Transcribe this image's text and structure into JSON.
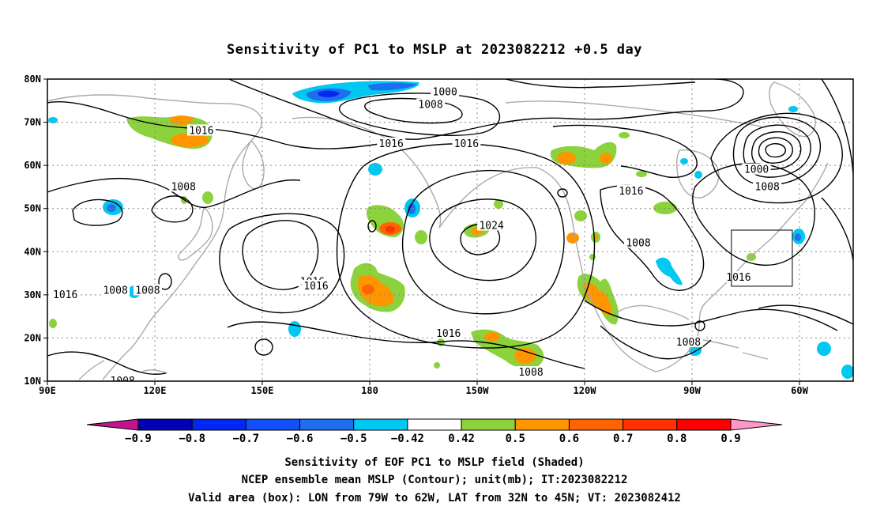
{
  "title": "Sensitivity of PC1 to MSLP at 2023082212 +0.5 day",
  "lat_labels": [
    {
      "name": "lat-80n",
      "label": "80N",
      "lat": 80
    },
    {
      "name": "lat-70n",
      "label": "70N",
      "lat": 70
    },
    {
      "name": "lat-60n",
      "label": "60N",
      "lat": 60
    },
    {
      "name": "lat-50n",
      "label": "50N",
      "lat": 50
    },
    {
      "name": "lat-40n",
      "label": "40N",
      "lat": 40
    },
    {
      "name": "lat-30n",
      "label": "30N",
      "lat": 30
    },
    {
      "name": "lat-20n",
      "label": "20N",
      "lat": 20
    },
    {
      "name": "lat-10n",
      "label": "10N",
      "lat": 10
    }
  ],
  "lon_labels": [
    {
      "name": "lon-90e",
      "label": "90E",
      "lon": 90
    },
    {
      "name": "lon-120e",
      "label": "120E",
      "lon": 120
    },
    {
      "name": "lon-150e",
      "label": "150E",
      "lon": 150
    },
    {
      "name": "lon-180",
      "label": "180",
      "lon": 180
    },
    {
      "name": "lon-150w",
      "label": "150W",
      "lon": 210
    },
    {
      "name": "lon-120w",
      "label": "120W",
      "lon": 240
    },
    {
      "name": "lon-90w",
      "label": "90W",
      "lon": 270
    },
    {
      "name": "lon-60w",
      "label": "60W",
      "lon": 300
    }
  ],
  "map_extent": {
    "lon_min": 90,
    "lon_max": 315,
    "lat_min": 10,
    "lat_max": 80
  },
  "valid_box": {
    "lon_west": 281,
    "lon_east": 298,
    "lat_south": 32,
    "lat_north": 45
  },
  "colorbar": {
    "colors": [
      "#c0148c",
      "#0000b4",
      "#0028f0",
      "#1450fa",
      "#1e6ef0",
      "#00c8f0",
      "#ffffff",
      "#8cd23c",
      "#ff9600",
      "#ff6400",
      "#ff3200",
      "#ff0000",
      "#ff96c8"
    ],
    "labels": [
      "-0.9",
      "-0.8",
      "-0.7",
      "-0.6",
      "-0.5",
      "-0.42",
      "0.42",
      "0.5",
      "0.6",
      "0.7",
      "0.8",
      "0.9"
    ]
  },
  "contour_labels": [
    {
      "text": "1000",
      "lon": 201,
      "lat": 77
    },
    {
      "text": "1008",
      "lon": 197,
      "lat": 74
    },
    {
      "text": "1016",
      "lon": 133,
      "lat": 68
    },
    {
      "text": "1016",
      "lon": 186,
      "lat": 65
    },
    {
      "text": "1016",
      "lon": 207,
      "lat": 65
    },
    {
      "text": "1024",
      "lon": 214,
      "lat": 46
    },
    {
      "text": "1008",
      "lon": 128,
      "lat": 55
    },
    {
      "text": "1016",
      "lon": 253,
      "lat": 54
    },
    {
      "text": "1000",
      "lon": 288,
      "lat": 59
    },
    {
      "text": "1008",
      "lon": 291,
      "lat": 55
    },
    {
      "text": "1008",
      "lon": 255,
      "lat": 42
    },
    {
      "text": "1016",
      "lon": 283,
      "lat": 34
    },
    {
      "text": "1016",
      "lon": 164,
      "lat": 33
    },
    {
      "text": "1016",
      "lon": 165,
      "lat": 32
    },
    {
      "text": "1008",
      "lon": 109,
      "lat": 31
    },
    {
      "text": "1016",
      "lon": 95,
      "lat": 30
    },
    {
      "text": "1008",
      "lon": 118,
      "lat": 31
    },
    {
      "text": "1016",
      "lon": 202,
      "lat": 21
    },
    {
      "text": "1008",
      "lon": 269,
      "lat": 19
    },
    {
      "text": "1008",
      "lon": 225,
      "lat": 12
    },
    {
      "text": "1008",
      "lon": 111,
      "lat": 10
    }
  ],
  "caption": {
    "line1": "Sensitivity of EOF PC1 to MSLP field (Shaded)",
    "line2": "NCEP ensemble mean MSLP (Contour); unit(mb); IT:2023082212",
    "line3": "Valid area (box): LON from 79W to 62W, LAT from 32N to 45N; VT: 2023082412"
  }
}
